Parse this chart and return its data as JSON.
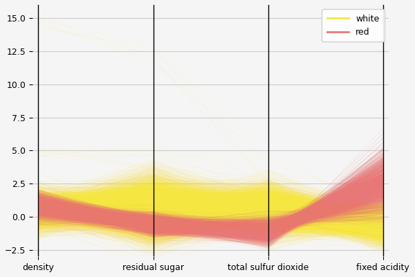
{
  "columns": [
    "density",
    "residual sugar",
    "total sulfur dioxide",
    "fixed acidity"
  ],
  "white_color": "#f5e642",
  "red_color": "#e87878",
  "white_alpha": 0.1,
  "red_alpha": 0.12,
  "ylim": [
    -3.0,
    16.0
  ],
  "yticks": [
    -2.5,
    0.0,
    2.5,
    5.0,
    7.5,
    10.0,
    12.5,
    15.0
  ],
  "legend_loc": "upper right",
  "figsize": [
    6.0,
    4.0
  ],
  "dpi": 100,
  "background_color": "#f5f5f5",
  "grid_color": "#cccccc",
  "seed": 42,
  "n_white": 4898,
  "n_red": 1599,
  "white_means": [
    0.5,
    0.6,
    0.5,
    -0.5
  ],
  "white_stds": [
    0.7,
    1.2,
    0.9,
    0.7
  ],
  "red_means": [
    0.8,
    -0.6,
    -1.1,
    0.3
  ],
  "red_stds": [
    0.5,
    0.4,
    0.5,
    1.5
  ],
  "n_outliers": 6,
  "outlier_density_range": [
    14.0,
    15.2
  ],
  "outlier_rs_range": [
    11.5,
    13.0
  ],
  "outlier_tso2_range": [
    2.5,
    5.5
  ],
  "outlier_fa_range": [
    -0.5,
    1.5
  ]
}
